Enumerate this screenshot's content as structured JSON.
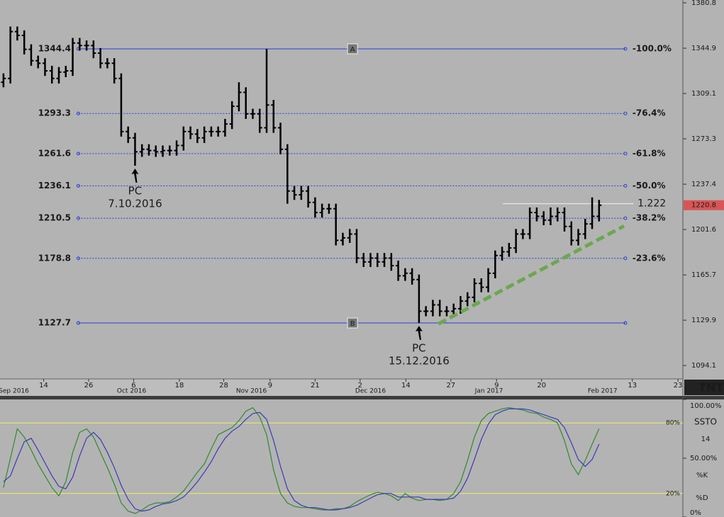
{
  "chart_data": [
    {
      "type": "ohlc",
      "xlim": [
        -0.5,
        98.1
      ],
      "xticks": [
        {
          "value": 5.8,
          "label": "14"
        },
        {
          "value": 12.3,
          "label": "26"
        },
        {
          "value": 18.8,
          "label": "6"
        },
        {
          "value": 25.4,
          "label": "18"
        },
        {
          "value": 31.8,
          "label": "28"
        },
        {
          "value": 38.5,
          "label": "9"
        },
        {
          "value": 45.0,
          "label": "21"
        },
        {
          "value": 51.5,
          "label": "2"
        },
        {
          "value": 58.1,
          "label": "14"
        },
        {
          "value": 64.6,
          "label": "27"
        },
        {
          "value": 71.2,
          "label": "9"
        },
        {
          "value": 77.7,
          "label": "20"
        },
        {
          "value": 90.8,
          "label": "13"
        },
        {
          "value": 97.4,
          "label": "23"
        }
      ],
      "month_labels": [
        {
          "value": 1.5,
          "label": "Sep 2016"
        },
        {
          "value": 18.5,
          "label": "Oct 2016"
        },
        {
          "value": 35.8,
          "label": "Nov 2016"
        },
        {
          "value": 53.0,
          "label": "Dec 2016"
        },
        {
          "value": 70.1,
          "label": "Jan 2017"
        },
        {
          "value": 86.5,
          "label": "Feb 2017"
        }
      ],
      "ylim": [
        1083.5,
        1383.0
      ],
      "yticks": [
        1380.8,
        1344.9,
        1309.1,
        1273.3,
        1237.4,
        1201.6,
        1165.7,
        1129.9,
        1094.1
      ],
      "color": "#000000",
      "open": [
        1318,
        1321,
        1358,
        1355,
        1344,
        1335,
        1333,
        1327,
        1321,
        1326,
        1327,
        1349,
        1347,
        1347,
        1341,
        1333,
        1333,
        1321,
        1279,
        1274,
        1263,
        1265,
        1264,
        1263,
        1264,
        1264,
        1268,
        1279,
        1277,
        1274,
        1279,
        1279,
        1279,
        1285,
        1299,
        1310,
        1293,
        1293,
        1282,
        1300,
        1282,
        1265,
        1232,
        1229,
        1232,
        1223,
        1215,
        1218,
        1218,
        1193,
        1195,
        1198,
        1179,
        1176,
        1179,
        1176,
        1179,
        1173,
        1165,
        1167,
        1162,
        1137,
        1137,
        1142,
        1137,
        1137,
        1139,
        1145,
        1148,
        1159,
        1156,
        1167,
        1181,
        1184,
        1187,
        1198,
        1198,
        1215,
        1212,
        1209,
        1212,
        1215,
        1204,
        1193,
        1198,
        1206,
        1212
      ],
      "high": [
        1325,
        1362,
        1362,
        1359,
        1348,
        1339,
        1337,
        1331,
        1330,
        1331,
        1353,
        1353,
        1351,
        1351,
        1345,
        1337,
        1337,
        1325,
        1283,
        1278,
        1269,
        1269,
        1268,
        1268,
        1268,
        1272,
        1283,
        1283,
        1281,
        1283,
        1283,
        1283,
        1289,
        1303,
        1318,
        1314,
        1297,
        1297,
        1344.4,
        1304,
        1286,
        1269,
        1236,
        1236,
        1236,
        1227,
        1222,
        1222,
        1222,
        1199,
        1202,
        1202,
        1183,
        1183,
        1183,
        1183,
        1183,
        1177,
        1171,
        1171,
        1166,
        1141,
        1146,
        1146,
        1141,
        1143,
        1149,
        1152,
        1163,
        1163,
        1171,
        1185,
        1188,
        1191,
        1202,
        1202,
        1219,
        1219,
        1216,
        1219,
        1219,
        1219,
        1208,
        1202,
        1210,
        1227,
        1225
      ],
      "low": [
        1314,
        1317,
        1351,
        1340,
        1331,
        1329,
        1323,
        1317,
        1317,
        1322,
        1323,
        1343,
        1343,
        1337,
        1329,
        1329,
        1317,
        1275,
        1270,
        1252,
        1259,
        1260,
        1259,
        1259,
        1260,
        1260,
        1264,
        1273,
        1270,
        1270,
        1275,
        1275,
        1275,
        1281,
        1295,
        1289,
        1289,
        1278,
        1278,
        1278,
        1261,
        1222,
        1225,
        1225,
        1219,
        1211,
        1211,
        1214,
        1189,
        1189,
        1191,
        1175,
        1172,
        1172,
        1172,
        1172,
        1169,
        1161,
        1161,
        1158,
        1127.7,
        1133,
        1133,
        1133,
        1133,
        1133,
        1135,
        1141,
        1144,
        1152,
        1152,
        1163,
        1177,
        1180,
        1183,
        1194,
        1194,
        1208,
        1205,
        1205,
        1208,
        1200,
        1189,
        1189,
        1194,
        1202,
        1208
      ],
      "close": [
        1321,
        1358,
        1355,
        1344,
        1335,
        1333,
        1327,
        1321,
        1326,
        1327,
        1349,
        1347,
        1347,
        1341,
        1333,
        1333,
        1321,
        1279,
        1274,
        1263,
        1265,
        1264,
        1263,
        1264,
        1264,
        1268,
        1279,
        1277,
        1274,
        1279,
        1279,
        1279,
        1285,
        1299,
        1310,
        1293,
        1293,
        1282,
        1300,
        1282,
        1265,
        1232,
        1229,
        1232,
        1223,
        1215,
        1218,
        1218,
        1193,
        1195,
        1198,
        1179,
        1176,
        1179,
        1176,
        1179,
        1173,
        1165,
        1167,
        1162,
        1137,
        1137,
        1142,
        1137,
        1137,
        1139,
        1145,
        1148,
        1159,
        1156,
        1167,
        1181,
        1184,
        1187,
        1198,
        1198,
        1215,
        1212,
        1209,
        1212,
        1215,
        1204,
        1193,
        1198,
        1206,
        1212,
        1220.8
      ],
      "retracement": {
        "x_from": 10.8,
        "x_to": 89.8,
        "point_x": 50.4,
        "color": "#2a3fd6",
        "levels": [
          {
            "price": 1344.4,
            "pct": "-100.0%",
            "point": "A"
          },
          {
            "price": 1293.3,
            "pct": "-76.4%"
          },
          {
            "price": 1261.6,
            "pct": "-61.8%"
          },
          {
            "price": 1236.1,
            "pct": "-50.0%"
          },
          {
            "price": 1210.5,
            "pct": "-38.2%"
          },
          {
            "price": 1178.8,
            "pct": "-23.6%"
          },
          {
            "price": 1127.7,
            "point": "B"
          }
        ]
      },
      "trend_line": {
        "x_from": 62.8,
        "y_from": 1127.0,
        "x_to": 89.6,
        "y_to": 1204.3,
        "color": "#6aa84f"
      },
      "resistance": {
        "value": 1222,
        "label": "1.222",
        "x_from": 72.1,
        "x_to": 91.0
      },
      "annotations": [
        {
          "text": "PC",
          "date": "7.10.2016",
          "bar": 19
        },
        {
          "text": "PC",
          "date": "15.12.2016",
          "bar": 60
        }
      ],
      "logo": "TNT"
    },
    {
      "type": "line",
      "title": "SSTO",
      "period": 14,
      "ylim": [
        0,
        100
      ],
      "yticks": [
        {
          "value": 100,
          "label": "100.00%"
        },
        {
          "value": 50,
          "label": "50.00%"
        },
        {
          "value": 0,
          "label": "0%"
        }
      ],
      "bands": [
        {
          "value": 80,
          "label": "80%"
        },
        {
          "value": 20,
          "label": "20%"
        }
      ],
      "series": [
        {
          "name": "%K",
          "color": "#2e8b2e",
          "values": [
            25,
            50,
            75,
            68,
            57,
            45,
            35,
            25,
            18,
            30,
            55,
            72,
            75,
            68,
            55,
            42,
            28,
            12,
            5,
            3,
            6,
            10,
            12,
            12,
            13,
            17,
            22,
            30,
            38,
            45,
            58,
            70,
            73,
            76,
            82,
            90,
            93,
            85,
            70,
            40,
            20,
            12,
            9,
            8,
            8,
            7,
            6,
            6,
            7,
            7,
            9,
            13,
            16,
            19,
            21,
            20,
            18,
            14,
            20,
            16,
            14,
            15,
            15,
            14,
            15,
            20,
            30,
            48,
            68,
            82,
            88,
            90,
            92,
            93,
            92,
            91,
            89,
            88,
            85,
            83,
            80,
            65,
            45,
            36,
            48,
            62,
            75
          ]
        },
        {
          "name": "%D",
          "color": "#3a3ab8",
          "values": [
            30,
            35,
            50,
            64,
            67,
            57,
            46,
            35,
            26,
            24,
            34,
            52,
            67,
            72,
            66,
            55,
            42,
            27,
            15,
            7,
            5,
            6,
            9,
            11,
            12,
            14,
            17,
            23,
            30,
            38,
            47,
            58,
            67,
            73,
            77,
            83,
            88,
            89,
            83,
            65,
            43,
            24,
            14,
            10,
            8,
            8,
            7,
            6,
            6,
            7,
            8,
            10,
            13,
            16,
            19,
            20,
            20,
            17,
            17,
            17,
            17,
            15,
            15,
            15,
            15,
            16,
            22,
            33,
            49,
            66,
            79,
            87,
            90,
            92,
            92,
            92,
            91,
            89,
            87,
            85,
            83,
            76,
            63,
            49,
            43,
            49,
            62
          ]
        }
      ]
    }
  ]
}
